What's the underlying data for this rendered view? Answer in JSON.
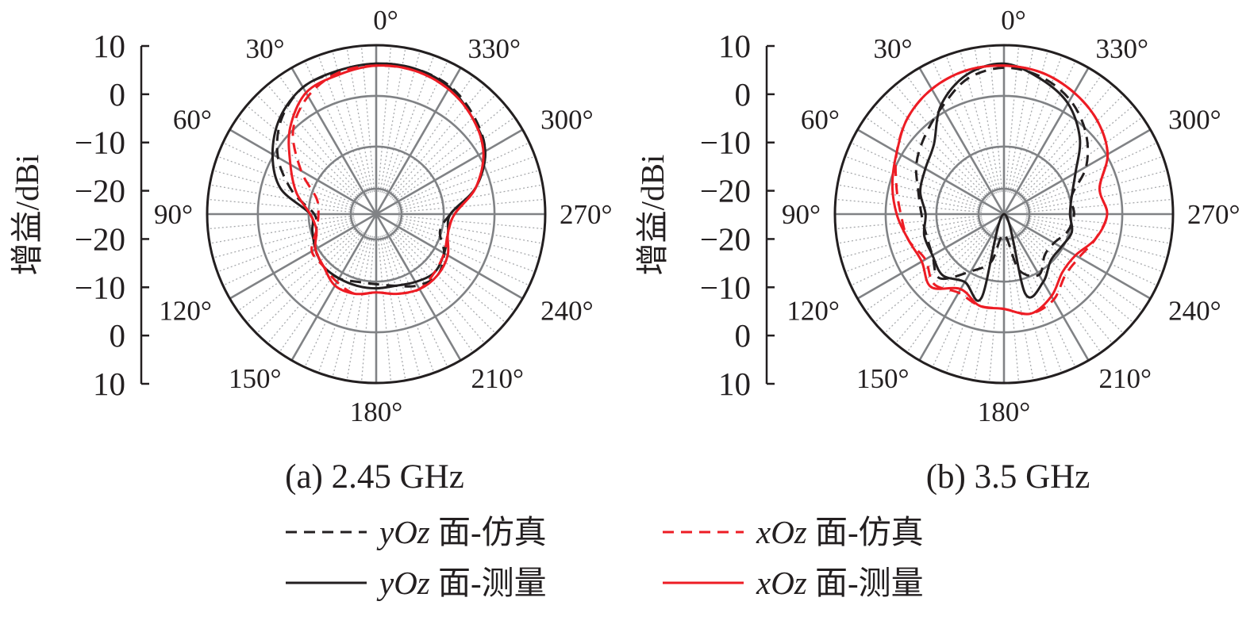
{
  "chart_data": [
    {
      "type": "polar-line",
      "caption": "(a) 2.45 GHz",
      "ylabel": "增益/dBi",
      "y_tick_labels": [
        "10",
        "0",
        "−10",
        "−20",
        "−20",
        "−10",
        "0",
        "10"
      ],
      "r_range": [
        -30,
        10
      ],
      "angle_labels": [
        "0°",
        "30°",
        "60°",
        "90°",
        "120°",
        "150°",
        "180°",
        "210°",
        "240°",
        "270°",
        "300°",
        "330°"
      ],
      "angle_direction": "counterclockwise",
      "series": [
        {
          "name": "yOz 面-仿真",
          "color": "#231f20",
          "dash": true,
          "angles": [
            0,
            15,
            30,
            45,
            60,
            75,
            90,
            105,
            120,
            135,
            150,
            165,
            180,
            195,
            210,
            225,
            240,
            255,
            270,
            285,
            300,
            315,
            330,
            345
          ],
          "values": [
            6.5,
            5.8,
            5.5,
            2.5,
            -2.5,
            -9,
            -15,
            -15,
            -13,
            -12,
            -12,
            -13,
            -13,
            -12,
            -10,
            -9,
            -11,
            -14,
            -12,
            -5,
            0.5,
            3.5,
            5.8,
            6.5
          ]
        },
        {
          "name": "xOz 面-仿真",
          "color": "#ed1c24",
          "dash": true,
          "angles": [
            0,
            15,
            30,
            45,
            60,
            75,
            90,
            105,
            120,
            135,
            150,
            165,
            180,
            195,
            210,
            225,
            240,
            255,
            270,
            285,
            300,
            315,
            330,
            345
          ],
          "values": [
            6,
            5.5,
            3,
            -1.5,
            -9,
            -15,
            -16,
            -15,
            -12,
            -12,
            -11,
            -10,
            -11,
            -10,
            -9,
            -10,
            -11,
            -12,
            -11,
            -5,
            0,
            3,
            5,
            6
          ]
        },
        {
          "name": "yOz 面-测量",
          "color": "#231f20",
          "dash": false,
          "angles": [
            0,
            15,
            30,
            45,
            60,
            75,
            90,
            105,
            120,
            135,
            150,
            165,
            180,
            195,
            210,
            225,
            240,
            255,
            270,
            285,
            300,
            315,
            330,
            345
          ],
          "values": [
            6.5,
            6,
            5.5,
            3,
            -1,
            -6,
            -14,
            -14,
            -13,
            -12,
            -12,
            -12,
            -12,
            -12,
            -11,
            -10,
            -11,
            -12,
            -12,
            -5,
            0.5,
            3,
            5.5,
            6.5
          ]
        },
        {
          "name": "xOz 面-测量",
          "color": "#ed1c24",
          "dash": false,
          "angles": [
            0,
            15,
            30,
            45,
            60,
            75,
            90,
            105,
            120,
            135,
            150,
            165,
            180,
            195,
            210,
            225,
            240,
            255,
            270,
            285,
            300,
            315,
            330,
            345
          ],
          "values": [
            6,
            5,
            4,
            -0.5,
            -6,
            -10,
            -14,
            -15,
            -13,
            -12,
            -10,
            -10,
            -11,
            -10,
            -9,
            -9,
            -10,
            -12,
            -11,
            -5,
            0,
            3,
            5,
            6
          ]
        }
      ]
    },
    {
      "type": "polar-line",
      "caption": "(b) 3.5 GHz",
      "ylabel": "增益/dBi",
      "y_tick_labels": [
        "10",
        "0",
        "−10",
        "−20",
        "−20",
        "−10",
        "0",
        "10"
      ],
      "r_range": [
        -30,
        10
      ],
      "angle_labels": [
        "0°",
        "30°",
        "60°",
        "90°",
        "120°",
        "150°",
        "180°",
        "210°",
        "240°",
        "270°",
        "300°",
        "330°"
      ],
      "angle_direction": "counterclockwise",
      "series": [
        {
          "name": "yOz 面-仿真",
          "color": "#231f20",
          "dash": true,
          "angles": [
            0,
            15,
            30,
            45,
            60,
            75,
            90,
            105,
            120,
            135,
            150,
            165,
            180,
            195,
            210,
            225,
            240,
            255,
            270,
            285,
            300,
            315,
            330,
            345
          ],
          "values": [
            5.5,
            4,
            0,
            -3,
            -5.5,
            -8.5,
            -10,
            -10.5,
            -10,
            -8,
            -14,
            -18,
            -25,
            -16,
            -13,
            -16,
            -16,
            -14,
            -13,
            -13,
            -7,
            -2,
            2,
            4.5
          ]
        },
        {
          "name": "xOz 面-仿真",
          "color": "#ed1c24",
          "dash": true,
          "angles": [
            0,
            15,
            30,
            45,
            60,
            75,
            90,
            105,
            120,
            135,
            150,
            165,
            180,
            195,
            210,
            225,
            240,
            255,
            270,
            285,
            300,
            315,
            330,
            345
          ],
          "values": [
            6,
            6,
            5,
            3,
            0,
            -3,
            -5,
            -6,
            -8,
            -6,
            -8,
            -7,
            -7,
            -5,
            -6,
            -9,
            -9,
            -7,
            -5,
            -6,
            -1,
            2,
            4,
            5.5
          ]
        },
        {
          "name": "yOz 面-测量",
          "color": "#231f20",
          "dash": false,
          "angles": [
            0,
            15,
            30,
            45,
            60,
            75,
            90,
            105,
            120,
            135,
            150,
            165,
            180,
            195,
            210,
            225,
            240,
            255,
            270,
            285,
            300,
            315,
            330,
            345
          ],
          "values": [
            6.5,
            5,
            0.5,
            -6,
            -8,
            -9,
            -11,
            -10,
            -10,
            -9,
            -11,
            -9,
            -30,
            -10,
            -11,
            -14,
            -14,
            -13,
            -14,
            -13,
            -10,
            -4,
            1,
            4
          ]
        },
        {
          "name": "xOz 面-测量",
          "color": "#ed1c24",
          "dash": false,
          "angles": [
            0,
            15,
            30,
            45,
            60,
            75,
            90,
            105,
            120,
            135,
            150,
            165,
            180,
            195,
            210,
            225,
            240,
            255,
            270,
            285,
            300,
            315,
            330,
            345
          ],
          "values": [
            6,
            6,
            5,
            3,
            0,
            -2,
            -4,
            -6,
            -7,
            -5,
            -9,
            -7,
            -7,
            -5,
            -7,
            -10,
            -10,
            -7,
            -5,
            -6,
            -1,
            2,
            4,
            5.5
          ]
        }
      ]
    }
  ],
  "legend": {
    "items": [
      {
        "prefix": "yOz",
        "suffix": " 面-仿真",
        "color": "#231f20",
        "dash": true
      },
      {
        "prefix": "xOz",
        "suffix": " 面-仿真",
        "color": "#ed1c24",
        "dash": true
      },
      {
        "prefix": "yOz",
        "suffix": " 面-测量",
        "color": "#231f20",
        "dash": false
      },
      {
        "prefix": "xOz",
        "suffix": " 面-测量",
        "color": "#ed1c24",
        "dash": false
      }
    ]
  },
  "colors": {
    "black": "#231f20",
    "red": "#ed1c24",
    "grid_major": "#808285",
    "grid_minor": "#a7a9ac"
  }
}
